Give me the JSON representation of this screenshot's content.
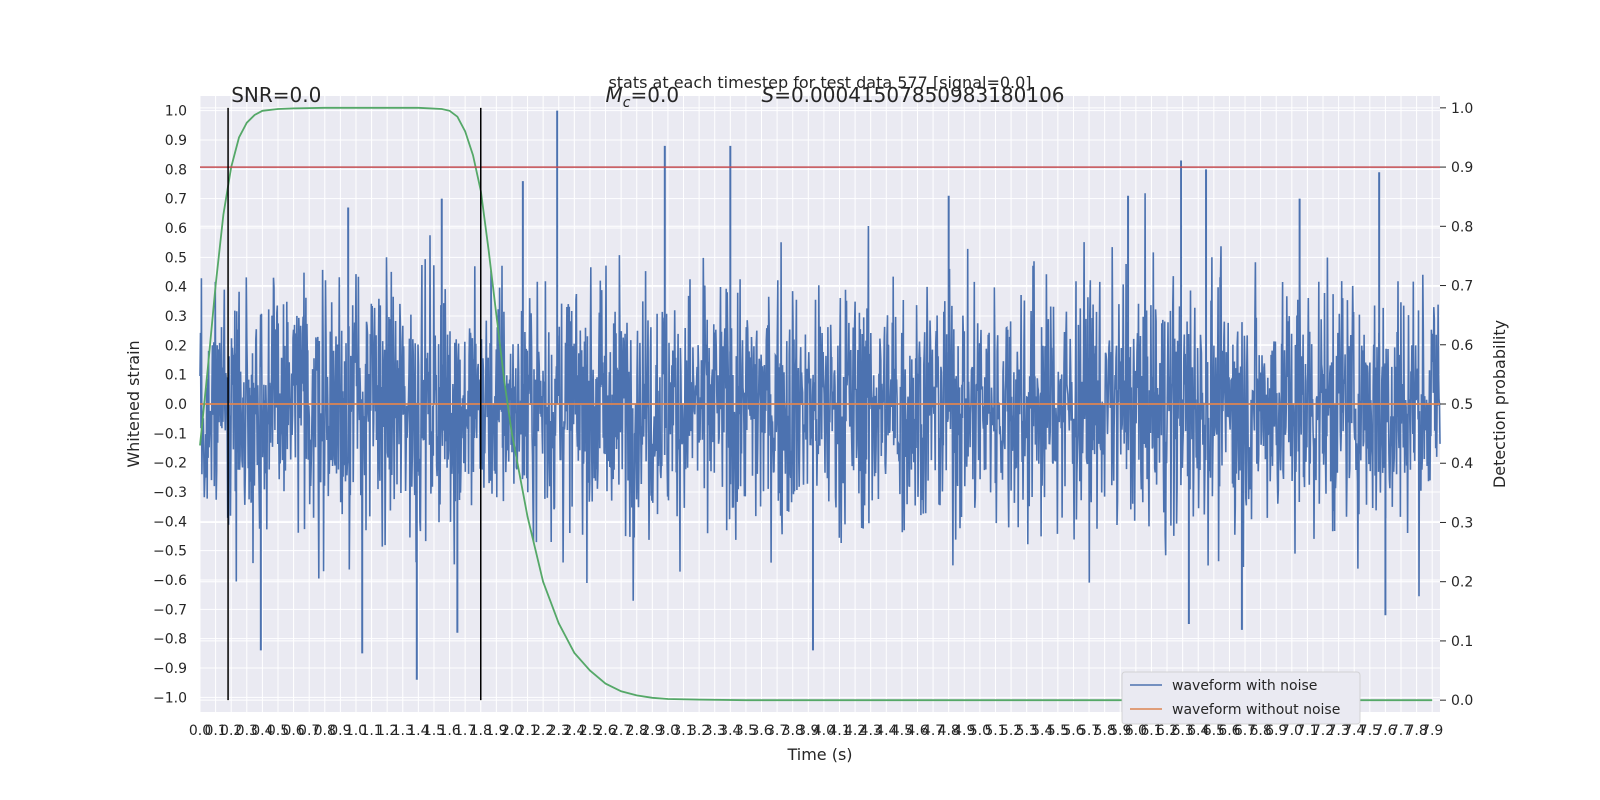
{
  "chart_data": {
    "type": "line",
    "title": "stats at each timestep for test data 577 [signal=0.0]",
    "xlabel": "Time (s)",
    "ylabel": "Whitened strain",
    "y2label": "Detection probability",
    "xlim": [
      0.0,
      7.95
    ],
    "ylim": [
      -1.05,
      1.05
    ],
    "y2lim": [
      -0.02,
      1.02
    ],
    "x_ticks": [
      0.0,
      0.1,
      0.2,
      0.3,
      0.4,
      0.5,
      0.6,
      0.7,
      0.8,
      0.9,
      1.0,
      1.1,
      1.2,
      1.3,
      1.4,
      1.5,
      1.6,
      1.7,
      1.8,
      1.9,
      2.0,
      2.1,
      2.2,
      2.3,
      2.4,
      2.5,
      2.6,
      2.7,
      2.8,
      2.9,
      3.0,
      3.1,
      3.2,
      3.3,
      3.4,
      3.5,
      3.6,
      3.7,
      3.8,
      3.9,
      4.0,
      4.1,
      4.2,
      4.3,
      4.4,
      4.5,
      4.6,
      4.7,
      4.8,
      4.9,
      5.0,
      5.1,
      5.2,
      5.3,
      5.4,
      5.5,
      5.6,
      5.7,
      5.8,
      5.9,
      6.0,
      6.1,
      6.2,
      6.3,
      6.4,
      6.5,
      6.6,
      6.7,
      6.8,
      6.9,
      7.0,
      7.1,
      7.2,
      7.3,
      7.4,
      7.5,
      7.6,
      7.7,
      7.8,
      7.9
    ],
    "y_ticks": [
      -1.0,
      -0.9,
      -0.8,
      -0.7,
      -0.6,
      -0.5,
      -0.4,
      -0.3,
      -0.2,
      -0.1,
      0.0,
      0.1,
      0.2,
      0.3,
      0.4,
      0.5,
      0.6,
      0.7,
      0.8,
      0.9,
      1.0
    ],
    "y2_ticks": [
      0.0,
      0.1,
      0.2,
      0.3,
      0.4,
      0.5,
      0.6,
      0.7,
      0.8,
      0.9,
      1.0
    ],
    "grid": true,
    "legend_position": "lower-right",
    "series": [
      {
        "name": "waveform with noise",
        "color": "#4c72b0",
        "axis": "left",
        "kind": "noise",
        "typical_envelope": [
          -0.45,
          0.45
        ],
        "peaks": [
          {
            "x": 2.29,
            "y": 1.0
          },
          {
            "x": 2.98,
            "y": 0.88
          },
          {
            "x": 3.4,
            "y": 0.88
          },
          {
            "x": 6.29,
            "y": 0.83
          },
          {
            "x": 6.45,
            "y": 0.8
          },
          {
            "x": 7.56,
            "y": 0.79
          },
          {
            "x": 4.8,
            "y": 0.71
          },
          {
            "x": 5.95,
            "y": 0.71
          },
          {
            "x": 1.55,
            "y": 0.7
          },
          {
            "x": 2.07,
            "y": 0.76
          },
          {
            "x": 0.95,
            "y": 0.67
          },
          {
            "x": 7.05,
            "y": 0.7
          },
          {
            "x": 1.39,
            "y": -0.94
          },
          {
            "x": 3.93,
            "y": -0.84
          },
          {
            "x": 0.39,
            "y": -0.84
          },
          {
            "x": 1.04,
            "y": -0.85
          },
          {
            "x": 6.68,
            "y": -0.77
          },
          {
            "x": 1.65,
            "y": -0.78
          },
          {
            "x": 6.34,
            "y": -0.75
          },
          {
            "x": 7.6,
            "y": -0.72
          }
        ]
      },
      {
        "name": "waveform without noise",
        "color": "#dd8452",
        "axis": "left",
        "x": [
          0.0,
          7.95
        ],
        "y": [
          0.0,
          0.0
        ]
      },
      {
        "color": "#55a868",
        "axis": "right",
        "x": [
          0.0,
          0.05,
          0.1,
          0.15,
          0.2,
          0.25,
          0.3,
          0.35,
          0.4,
          0.5,
          0.6,
          0.8,
          1.0,
          1.2,
          1.4,
          1.55,
          1.6,
          1.65,
          1.7,
          1.75,
          1.8,
          1.85,
          1.9,
          1.95,
          2.0,
          2.1,
          2.2,
          2.3,
          2.4,
          2.5,
          2.6,
          2.7,
          2.8,
          2.9,
          3.0,
          3.2,
          3.5,
          4.0,
          5.0,
          6.0,
          7.0,
          7.9
        ],
        "y": [
          0.43,
          0.56,
          0.7,
          0.82,
          0.9,
          0.95,
          0.975,
          0.988,
          0.995,
          0.998,
          0.999,
          1.0,
          1.0,
          1.0,
          1.0,
          0.998,
          0.995,
          0.985,
          0.96,
          0.92,
          0.86,
          0.76,
          0.65,
          0.54,
          0.45,
          0.31,
          0.2,
          0.13,
          0.08,
          0.05,
          0.028,
          0.015,
          0.008,
          0.004,
          0.002,
          0.001,
          0.0,
          0.0,
          0.0,
          0.0,
          0.0,
          0.0
        ]
      }
    ],
    "reference_lines": [
      {
        "kind": "horizontal",
        "axis": "right",
        "y": 0.9,
        "color": "#c44e52"
      },
      {
        "kind": "vertical",
        "x": 0.18,
        "y_from": 0.0,
        "y_to": 1.0,
        "axis": "right",
        "color": "#000000"
      },
      {
        "kind": "vertical",
        "x": 1.8,
        "y_from": 0.0,
        "y_to": 1.0,
        "axis": "right",
        "color": "#000000"
      }
    ],
    "annotations": [
      {
        "text": "SNR=0.0",
        "x": 0.2,
        "y2": 1.01
      },
      {
        "math": "M",
        "sub": "c",
        "rest": "=0.0",
        "x": 2.6,
        "y2": 1.01
      },
      {
        "math": "S",
        "rest": "=0.00041507850983180106",
        "x": 3.6,
        "y2": 1.01
      }
    ]
  }
}
